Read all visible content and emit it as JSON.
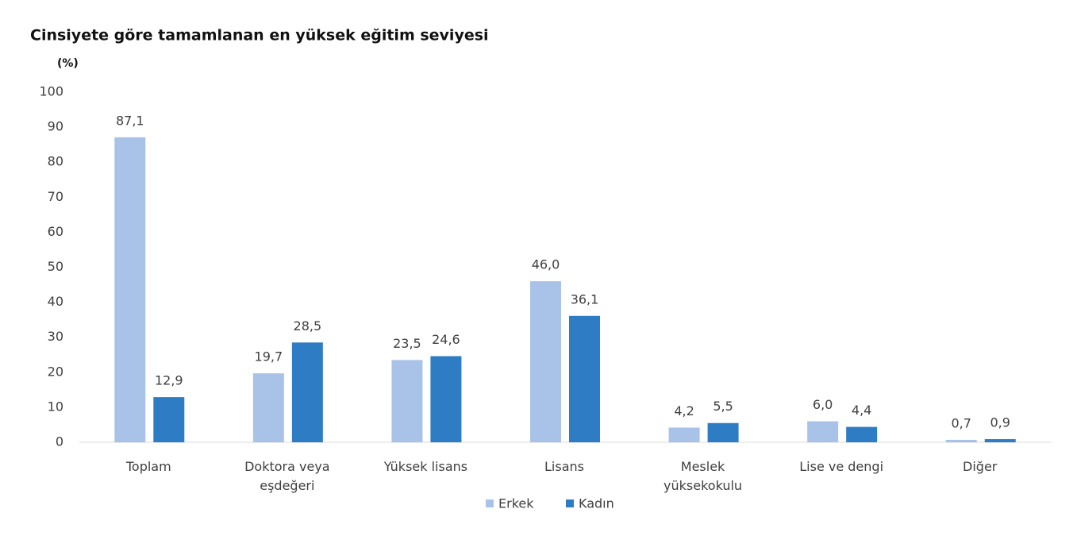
{
  "chart_data": {
    "type": "bar",
    "title": "Cinsiyete göre tamamlanan en yüksek eğitim seviyesi",
    "y_unit": "(%)",
    "categories": [
      "Toplam",
      "Doktora veya\neşdeğeri",
      "Yüksek lisans",
      "Lisans",
      "Meslek\nyüksekokulu",
      "Lise ve dengi",
      "Diğer"
    ],
    "series": [
      {
        "name": "Erkek",
        "color": "#a9c3e8",
        "values": [
          87.1,
          19.7,
          23.5,
          46.0,
          4.2,
          6.0,
          0.7
        ],
        "value_labels": [
          "87,1",
          "19,7",
          "23,5",
          "46,0",
          "4,2",
          "6,0",
          "0,7"
        ]
      },
      {
        "name": "Kadın",
        "color": "#2e7dc4",
        "values": [
          12.9,
          28.5,
          24.6,
          36.1,
          5.5,
          4.4,
          0.9
        ],
        "value_labels": [
          "12,9",
          "28,5",
          "24,6",
          "36,1",
          "5,5",
          "4,4",
          "0,9"
        ]
      }
    ],
    "ylim": [
      0,
      100
    ],
    "yticks": [
      0,
      10,
      20,
      30,
      40,
      50,
      60,
      70,
      80,
      90,
      100
    ],
    "grid": false
  }
}
